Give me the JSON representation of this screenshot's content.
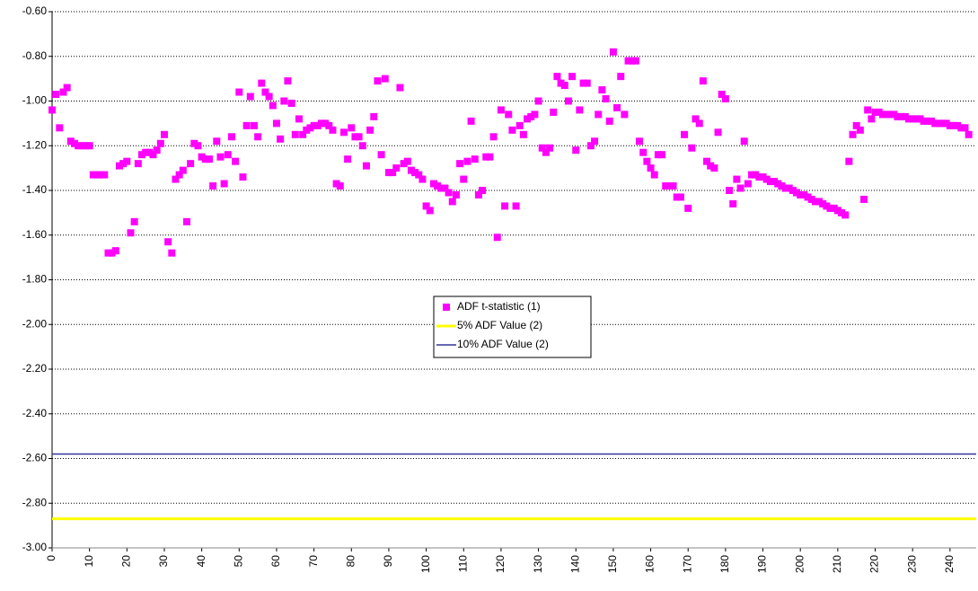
{
  "chart_data": {
    "type": "scatter",
    "x": [
      0,
      1,
      2,
      3,
      4,
      5,
      6,
      7,
      8,
      9,
      10,
      11,
      12,
      13,
      14,
      15,
      16,
      17,
      18,
      19,
      20,
      21,
      22,
      23,
      24,
      25,
      26,
      27,
      28,
      29,
      30,
      31,
      32,
      33,
      34,
      35,
      36,
      37,
      38,
      39,
      40,
      41,
      42,
      43,
      44,
      45,
      46,
      47,
      48,
      49,
      50,
      51,
      52,
      53,
      54,
      55,
      56,
      57,
      58,
      59,
      60,
      61,
      62,
      63,
      64,
      65,
      66,
      67,
      68,
      69,
      70,
      71,
      72,
      73,
      74,
      75,
      76,
      77,
      78,
      79,
      80,
      81,
      82,
      83,
      84,
      85,
      86,
      87,
      88,
      89,
      90,
      91,
      92,
      93,
      94,
      95,
      96,
      97,
      98,
      99,
      100,
      101,
      102,
      103,
      104,
      105,
      106,
      107,
      108,
      109,
      110,
      111,
      112,
      113,
      114,
      115,
      116,
      117,
      118,
      119,
      120,
      121,
      122,
      123,
      124,
      125,
      126,
      127,
      128,
      129,
      130,
      131,
      132,
      133,
      134,
      135,
      136,
      137,
      138,
      139,
      140,
      141,
      142,
      143,
      144,
      145,
      146,
      147,
      148,
      149,
      150,
      151,
      152,
      153,
      154,
      155,
      156,
      157,
      158,
      159,
      160,
      161,
      162,
      163,
      164,
      165,
      166,
      167,
      168,
      169,
      170,
      171,
      172,
      173,
      174,
      175,
      176,
      177,
      178,
      179,
      180,
      181,
      182,
      183,
      184,
      185,
      186,
      187,
      188,
      189,
      190,
      191,
      192,
      193,
      194,
      195,
      196,
      197,
      198,
      199,
      200,
      201,
      202,
      203,
      204,
      205,
      206,
      207,
      208,
      209,
      210,
      211,
      212,
      213,
      214,
      215,
      216,
      217,
      218,
      219,
      220,
      221,
      222,
      223,
      224,
      225,
      226,
      227,
      228,
      229,
      230,
      231,
      232,
      233,
      234,
      235,
      236,
      237,
      238,
      239,
      240,
      241,
      242,
      243,
      244,
      245
    ],
    "series": [
      {
        "name": "ADF t-statistic (1)",
        "color": "#ff00ff",
        "values": [
          -1.04,
          -0.97,
          -1.12,
          -0.96,
          -0.94,
          -1.18,
          -1.19,
          -1.2,
          -1.2,
          -1.2,
          -1.2,
          -1.33,
          -1.33,
          -1.33,
          -1.33,
          -1.68,
          -1.68,
          -1.67,
          -1.29,
          -1.28,
          -1.27,
          -1.59,
          -1.54,
          -1.28,
          -1.24,
          -1.23,
          -1.23,
          -1.24,
          -1.22,
          -1.19,
          -1.15,
          -1.63,
          -1.68,
          -1.35,
          -1.33,
          -1.31,
          -1.54,
          -1.28,
          -1.19,
          -1.2,
          -1.25,
          -1.26,
          -1.26,
          -1.38,
          -1.18,
          -1.25,
          -1.37,
          -1.24,
          -1.16,
          -1.27,
          -0.96,
          -1.34,
          -1.11,
          -0.98,
          -1.11,
          -1.16,
          -0.92,
          -0.96,
          -0.98,
          -1.02,
          -1.1,
          -1.17,
          -1,
          -0.91,
          -1.01,
          -1.15,
          -1.08,
          -1.15,
          -1.13,
          -1.12,
          -1.11,
          -1.11,
          -1.1,
          -1.1,
          -1.11,
          -1.13,
          -1.37,
          -1.38,
          -1.14,
          -1.26,
          -1.12,
          -1.16,
          -1.16,
          -1.2,
          -1.29,
          -1.13,
          -1.07,
          -0.91,
          -1.24,
          -0.9,
          -1.32,
          -1.32,
          -1.3,
          -0.94,
          -1.28,
          -1.27,
          -1.31,
          -1.32,
          -1.33,
          -1.35,
          -1.47,
          -1.49,
          -1.37,
          -1.38,
          -1.39,
          -1.39,
          -1.41,
          -1.45,
          -1.42,
          -1.28,
          -1.35,
          -1.27,
          -1.09,
          -1.26,
          -1.42,
          -1.4,
          -1.25,
          -1.25,
          -1.16,
          -1.61,
          -1.04,
          -1.47,
          -1.06,
          -1.13,
          -1.47,
          -1.11,
          -1.15,
          -1.08,
          -1.07,
          -1.06,
          -1,
          -1.21,
          -1.23,
          -1.21,
          -1.05,
          -0.89,
          -0.92,
          -0.93,
          -1,
          -0.89,
          -1.22,
          -1.04,
          -0.92,
          -0.92,
          -1.2,
          -1.18,
          -1.06,
          -0.95,
          -0.99,
          -1.09,
          -0.78,
          -1.03,
          -0.89,
          -1.06,
          -0.82,
          -0.82,
          -0.82,
          -1.18,
          -1.23,
          -1.27,
          -1.3,
          -1.33,
          -1.24,
          -1.24,
          -1.38,
          -1.38,
          -1.38,
          -1.43,
          -1.43,
          -1.15,
          -1.48,
          -1.21,
          -1.08,
          -1.1,
          -0.91,
          -1.27,
          -1.29,
          -1.3,
          -1.14,
          -0.97,
          -0.99,
          -1.4,
          -1.46,
          -1.35,
          -1.39,
          -1.18,
          -1.37,
          -1.33,
          -1.33,
          -1.34,
          -1.34,
          -1.35,
          -1.36,
          -1.36,
          -1.37,
          -1.38,
          -1.39,
          -1.39,
          -1.4,
          -1.41,
          -1.42,
          -1.42,
          -1.43,
          -1.44,
          -1.45,
          -1.45,
          -1.46,
          -1.47,
          -1.48,
          -1.48,
          -1.49,
          -1.5,
          -1.51,
          -1.27,
          -1.15,
          -1.11,
          -1.13,
          -1.44,
          -1.04,
          -1.08,
          -1.05,
          -1.05,
          -1.06,
          -1.06,
          -1.06,
          -1.06,
          -1.07,
          -1.07,
          -1.07,
          -1.08,
          -1.08,
          -1.08,
          -1.08,
          -1.09,
          -1.09,
          -1.09,
          -1.1,
          -1.1,
          -1.1,
          -1.1,
          -1.11,
          -1.11,
          -1.11,
          -1.12,
          -1.12,
          -1.15
        ]
      },
      {
        "name": "5% ADF Value (2)",
        "color": "#ffff00",
        "level": -2.87
      },
      {
        "name": "10% ADF Value (2)",
        "color": "#333399",
        "level": -2.58
      }
    ],
    "xlim": [
      0,
      247
    ],
    "xticks": [
      0,
      10,
      20,
      30,
      40,
      50,
      60,
      70,
      80,
      90,
      100,
      110,
      120,
      130,
      140,
      150,
      160,
      170,
      180,
      190,
      200,
      210,
      220,
      230,
      240
    ],
    "ylim": [
      -3,
      -0.6
    ],
    "yticks": [
      {
        "value": -3,
        "label": "-3.00"
      },
      {
        "value": -2.8,
        "label": "-2.80"
      },
      {
        "value": -2.6,
        "label": "-2.60"
      },
      {
        "value": -2.4,
        "label": "-2.40"
      },
      {
        "value": -2.2,
        "label": "-2.20"
      },
      {
        "value": -2,
        "label": "-2.00"
      },
      {
        "value": -1.8,
        "label": "-1.80"
      },
      {
        "value": -1.6,
        "label": "-1.60"
      },
      {
        "value": -1.4,
        "label": "-1.40"
      },
      {
        "value": -1.2,
        "label": "-1.20"
      },
      {
        "value": -1,
        "label": "-1.00"
      },
      {
        "value": -0.8,
        "label": "-0.80"
      },
      {
        "value": -0.6,
        "label": "-0.60"
      }
    ],
    "grid": true
  }
}
